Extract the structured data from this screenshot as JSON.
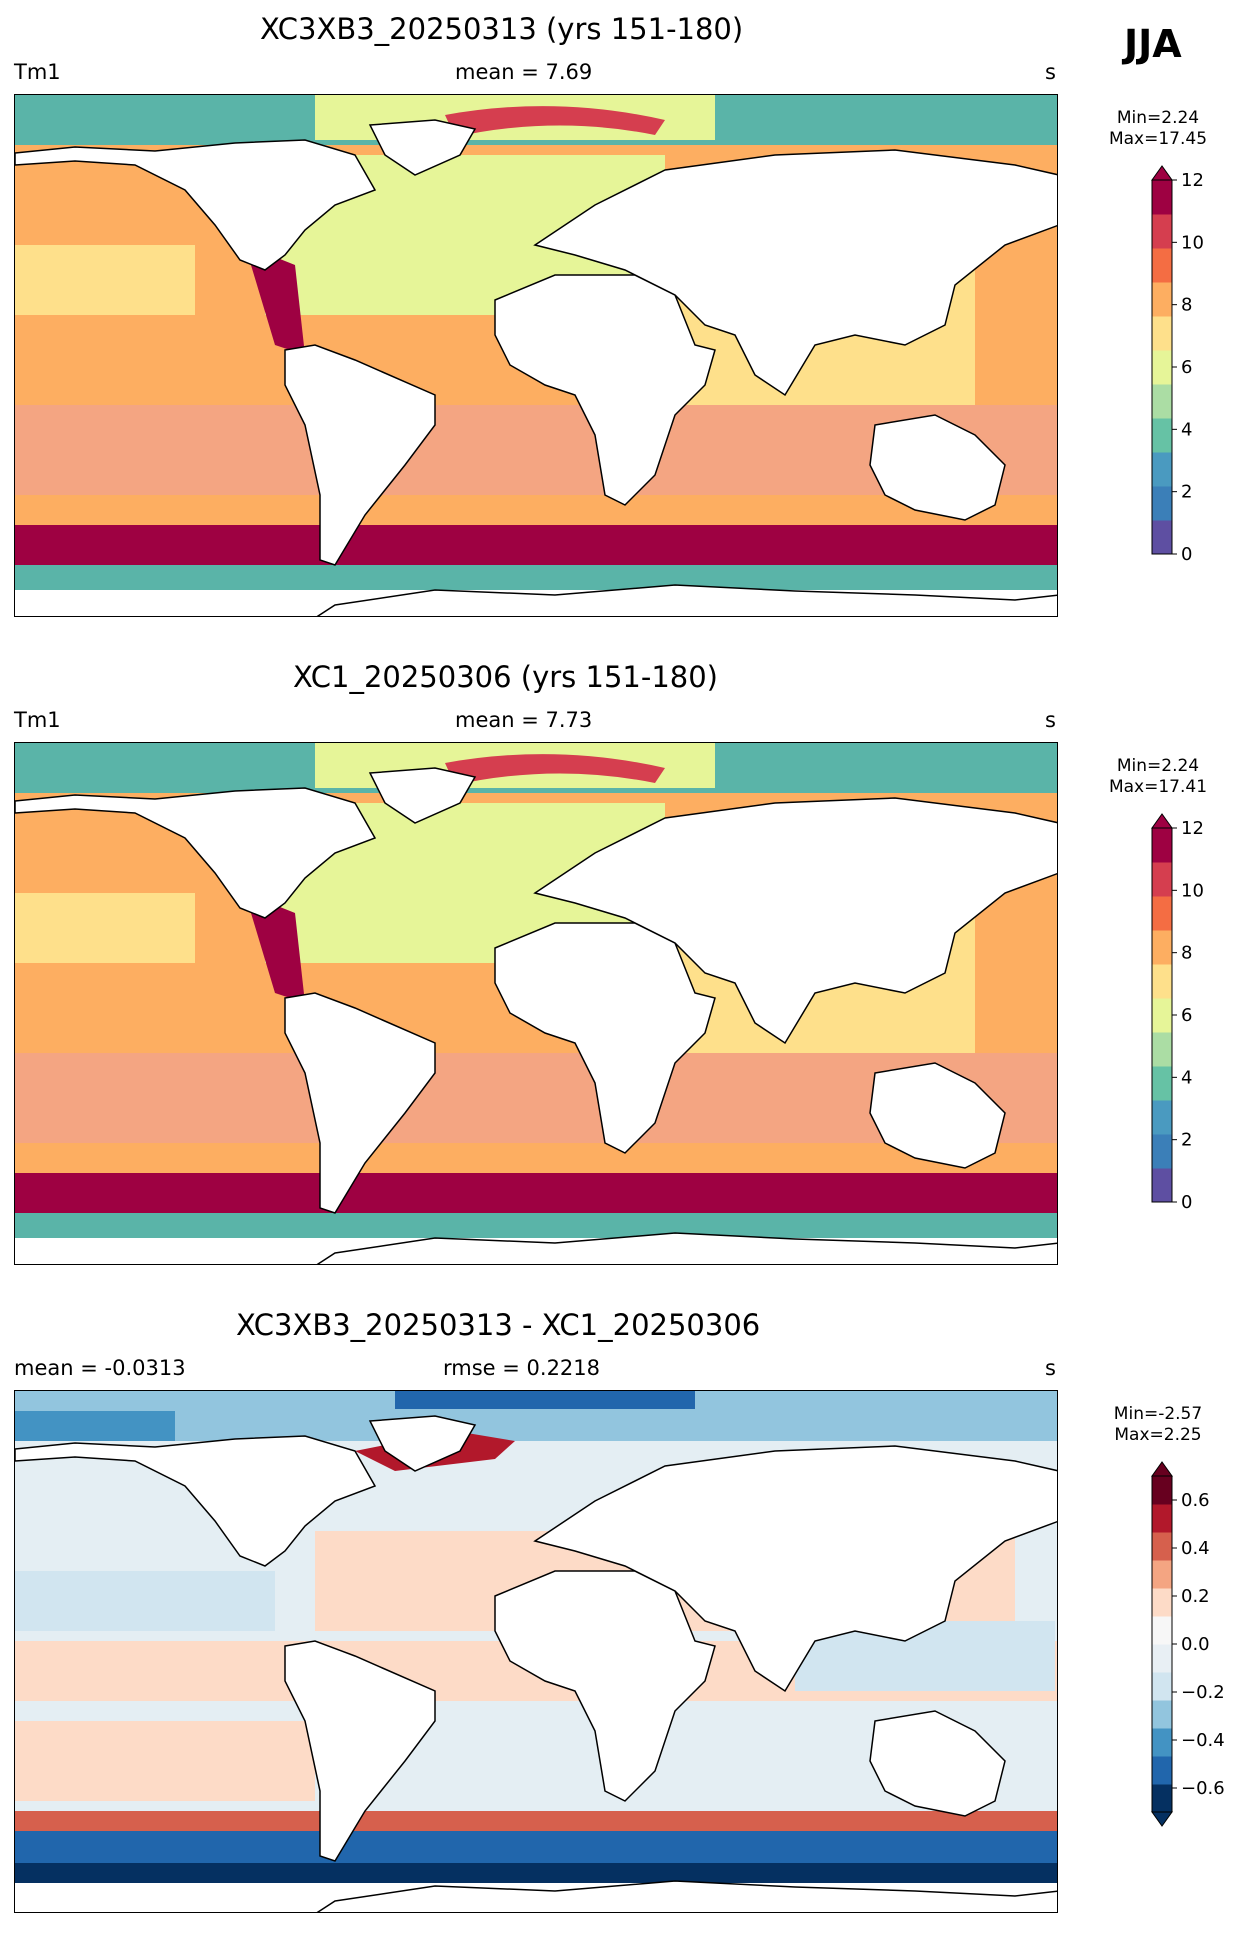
{
  "season": "JJA",
  "panels": [
    {
      "title": "XC3XB3_20250313 (yrs 151-180)",
      "left": "Tm1",
      "center": "mean = 7.69",
      "right": "s",
      "min_max": "Min=2.24\nMax=17.45",
      "colorbar_ticks": [
        "0",
        "2",
        "4",
        "6",
        "8",
        "10",
        "12"
      ],
      "colorbar_colors": [
        "#5e4fa2",
        "#3b7fb8",
        "#4a9ac0",
        "#66c2a5",
        "#abdda4",
        "#e6f598",
        "#fee08b",
        "#fdae61",
        "#f46d43",
        "#d53e4f",
        "#9e0142"
      ]
    },
    {
      "title": "XC1_20250306 (yrs 151-180)",
      "left": "Tm1",
      "center": "mean = 7.73",
      "right": "s",
      "min_max": "Min=2.24\nMax=17.41",
      "colorbar_ticks": [
        "0",
        "2",
        "4",
        "6",
        "8",
        "10",
        "12"
      ],
      "colorbar_colors": [
        "#5e4fa2",
        "#3b7fb8",
        "#4a9ac0",
        "#66c2a5",
        "#abdda4",
        "#e6f598",
        "#fee08b",
        "#fdae61",
        "#f46d43",
        "#d53e4f",
        "#9e0142"
      ]
    },
    {
      "title": "XC3XB3_20250313 - XC1_20250306",
      "left": "mean = -0.0313",
      "center": "rmse = 0.2218",
      "right": "s",
      "min_max": "Min=-2.57\nMax=2.25",
      "colorbar_ticks": [
        "−0.6",
        "−0.4",
        "−0.2",
        "0.0",
        "0.2",
        "0.4",
        "0.6"
      ],
      "colorbar_colors": [
        "#053061",
        "#2166ac",
        "#4393c3",
        "#92c5de",
        "#d1e5f0",
        "#e8eff4",
        "#f7f7f7",
        "#fddbc7",
        "#f4a582",
        "#d6604d",
        "#b2182b",
        "#67001f"
      ]
    }
  ]
}
